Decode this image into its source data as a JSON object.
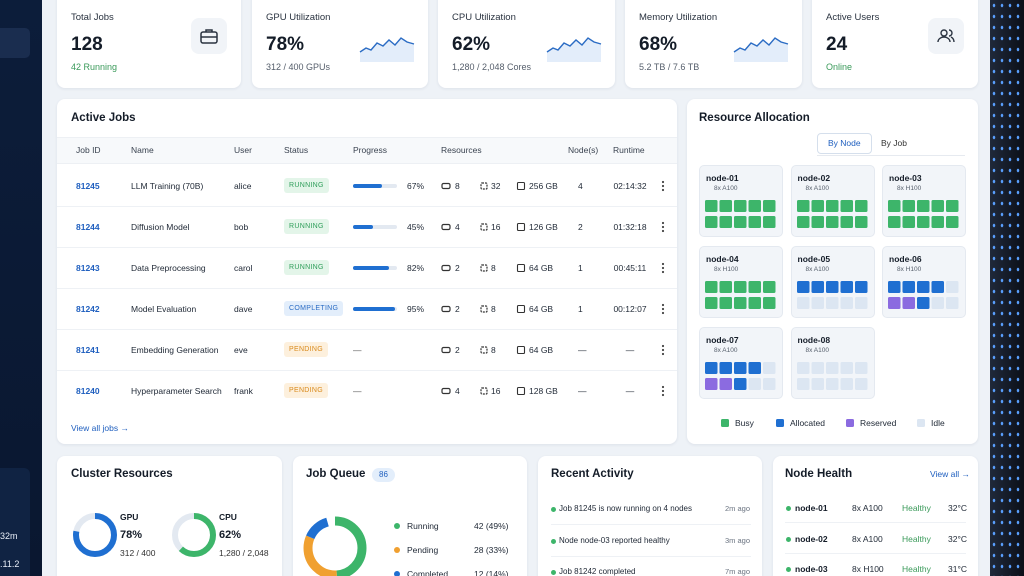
{
  "sidebar": {
    "texts": [
      "32m",
      ".11.2"
    ]
  },
  "stats": [
    {
      "title": "Total Jobs",
      "value": "128",
      "sub": "42 Running",
      "sub_color": "#3a9a5a"
    },
    {
      "title": "GPU Utilization",
      "value": "78%",
      "sub": "312 / 400 GPUs",
      "sub_color": "#555e6b"
    },
    {
      "title": "CPU Utilization",
      "value": "62%",
      "sub": "1,280 / 2,048 Cores",
      "sub_color": "#555e6b"
    },
    {
      "title": "Memory Utilization",
      "value": "68%",
      "sub": "5.2 TB / 7.6 TB",
      "sub_color": "#555e6b"
    },
    {
      "title": "Active Users",
      "value": "24",
      "sub": "Online",
      "sub_color": "#3a9a5a"
    }
  ],
  "active_jobs": {
    "title": "Active Jobs",
    "columns": [
      "Job ID",
      "Name",
      "User",
      "Status",
      "Progress",
      "Resources",
      "Node(s)",
      "Runtime"
    ],
    "rows": [
      {
        "id": "81245",
        "name": "LLM Training (70B)",
        "user": "alice",
        "status": {
          "label": "RUNNING",
          "color": "#2f9e5a",
          "bg": "#e3f5e9"
        },
        "progress": {
          "value": 67,
          "label": "67%"
        },
        "gpus": 8,
        "cpus": 32,
        "memory": "256 GB",
        "nodes": "4",
        "runtime": "02:14:32"
      },
      {
        "id": "81244",
        "name": "Diffusion Model",
        "user": "bob",
        "status": {
          "label": "RUNNING",
          "color": "#2f9e5a",
          "bg": "#e3f5e9"
        },
        "progress": {
          "value": 45,
          "label": "45%"
        },
        "gpus": 4,
        "cpus": 16,
        "memory": "126 GB",
        "nodes": "2",
        "runtime": "01:32:18"
      },
      {
        "id": "81243",
        "name": "Data Preprocessing",
        "user": "carol",
        "status": {
          "label": "RUNNING",
          "color": "#2f9e5a",
          "bg": "#e3f5e9"
        },
        "progress": {
          "value": 82,
          "label": "82%"
        },
        "gpus": 2,
        "cpus": 8,
        "memory": "64 GB",
        "nodes": "1",
        "runtime": "00:45:11"
      },
      {
        "id": "81242",
        "name": "Model Evaluation",
        "user": "dave",
        "status": {
          "label": "COMPLETING",
          "color": "#2b6cc4",
          "bg": "#e3eefb"
        },
        "progress": {
          "value": 95,
          "label": "95%"
        },
        "gpus": 2,
        "cpus": 8,
        "memory": "64 GB",
        "nodes": "1",
        "runtime": "00:12:07"
      },
      {
        "id": "81241",
        "name": "Embedding Generation",
        "user": "eve",
        "status": {
          "label": "PENDING",
          "color": "#d98a1c",
          "bg": "#fdf0dd"
        },
        "progress": "—",
        "gpus": 2,
        "cpus": 8,
        "memory": "64 GB",
        "nodes": "—",
        "runtime": "—"
      },
      {
        "id": "81240",
        "name": "Hyperparameter Search",
        "user": "frank",
        "status": {
          "label": "PENDING",
          "color": "#d98a1c",
          "bg": "#fdf0dd"
        },
        "progress": "—",
        "gpus": 4,
        "cpus": 16,
        "memory": "128 GB",
        "nodes": "—",
        "runtime": "—"
      }
    ],
    "footer": "View all jobs →"
  },
  "resource_allocation": {
    "title": "Resource Allocation",
    "tabs": [
      "By Node",
      "By Job"
    ],
    "nodes": [
      {
        "name": "node-01",
        "gpu": "8x A100",
        "cells": [
          0,
          0,
          0,
          0,
          0,
          0,
          0,
          0,
          0,
          0
        ]
      },
      {
        "name": "node-02",
        "gpu": "8x A100",
        "cells": [
          0,
          0,
          0,
          0,
          0,
          0,
          0,
          0,
          0,
          0
        ]
      },
      {
        "name": "node-03",
        "gpu": "8x H100",
        "cells": [
          0,
          0,
          0,
          0,
          0,
          0,
          0,
          0,
          0,
          0
        ]
      },
      {
        "name": "node-04",
        "gpu": "8x H100",
        "cells": [
          0,
          0,
          0,
          0,
          0,
          0,
          0,
          0,
          0,
          0
        ]
      },
      {
        "name": "node-05",
        "gpu": "8x A100",
        "cells": [
          1,
          1,
          1,
          1,
          1,
          3,
          3,
          3,
          3,
          3
        ]
      },
      {
        "name": "node-06",
        "gpu": "8x H100",
        "cells": [
          1,
          1,
          1,
          1,
          3,
          2,
          2,
          1,
          3,
          3
        ]
      },
      {
        "name": "node-07",
        "gpu": "8x A100",
        "cells": [
          1,
          1,
          1,
          1,
          3,
          2,
          2,
          1,
          3,
          3
        ]
      },
      {
        "name": "node-08",
        "gpu": "8x A100",
        "cells": [
          3,
          3,
          3,
          3,
          3,
          3,
          3,
          3,
          3,
          3
        ]
      }
    ],
    "legend": [
      {
        "label": "Busy",
        "color": "#3db56a"
      },
      {
        "label": "Allocated",
        "color": "#1f6fd1"
      },
      {
        "label": "Reserved",
        "color": "#8b6be0"
      },
      {
        "label": "Idle",
        "color": "#dce6f2"
      }
    ]
  },
  "cluster_resources": {
    "title": "Cluster Resources",
    "items": [
      {
        "name": "GPU",
        "percent": {
          "value": 78,
          "label": "78%"
        },
        "detail": "312 / 400",
        "color": "#1f6fd1"
      },
      {
        "name": "CPU",
        "percent": {
          "value": 62,
          "label": "62%"
        },
        "detail": "1,280 / 2,048",
        "color": "#3db56a"
      }
    ]
  },
  "job_queue": {
    "title": "Job Queue",
    "count": 86,
    "items": [
      {
        "label": "Running",
        "value": 42,
        "value_label": "42 (49%)",
        "color": "#3db56a"
      },
      {
        "label": "Pending",
        "value": 28,
        "value_label": "28 (33%)",
        "color": "#f0a030"
      },
      {
        "label": "Completed",
        "value": 12,
        "value_label": "12 (14%)",
        "color": "#1f6fd1"
      }
    ]
  },
  "recent_activity": {
    "title": "Recent Activity",
    "items": [
      {
        "text": "Job 81245 is now running on 4 nodes",
        "time": "2m ago"
      },
      {
        "text": "Node node-03 reported healthy",
        "time": "3m ago"
      },
      {
        "text": "Job 81242 completed",
        "time": "7m ago"
      }
    ]
  },
  "node_health": {
    "title": "Node Health",
    "link": "View all →",
    "rows": [
      {
        "name": "node-01",
        "gpu": "8x A100",
        "status": "Healthy",
        "temp": "32°C"
      },
      {
        "name": "node-02",
        "gpu": "8x A100",
        "status": "Healthy",
        "temp": "32°C"
      },
      {
        "name": "node-03",
        "gpu": "8x H100",
        "status": "Healthy",
        "temp": "31°C"
      }
    ]
  }
}
